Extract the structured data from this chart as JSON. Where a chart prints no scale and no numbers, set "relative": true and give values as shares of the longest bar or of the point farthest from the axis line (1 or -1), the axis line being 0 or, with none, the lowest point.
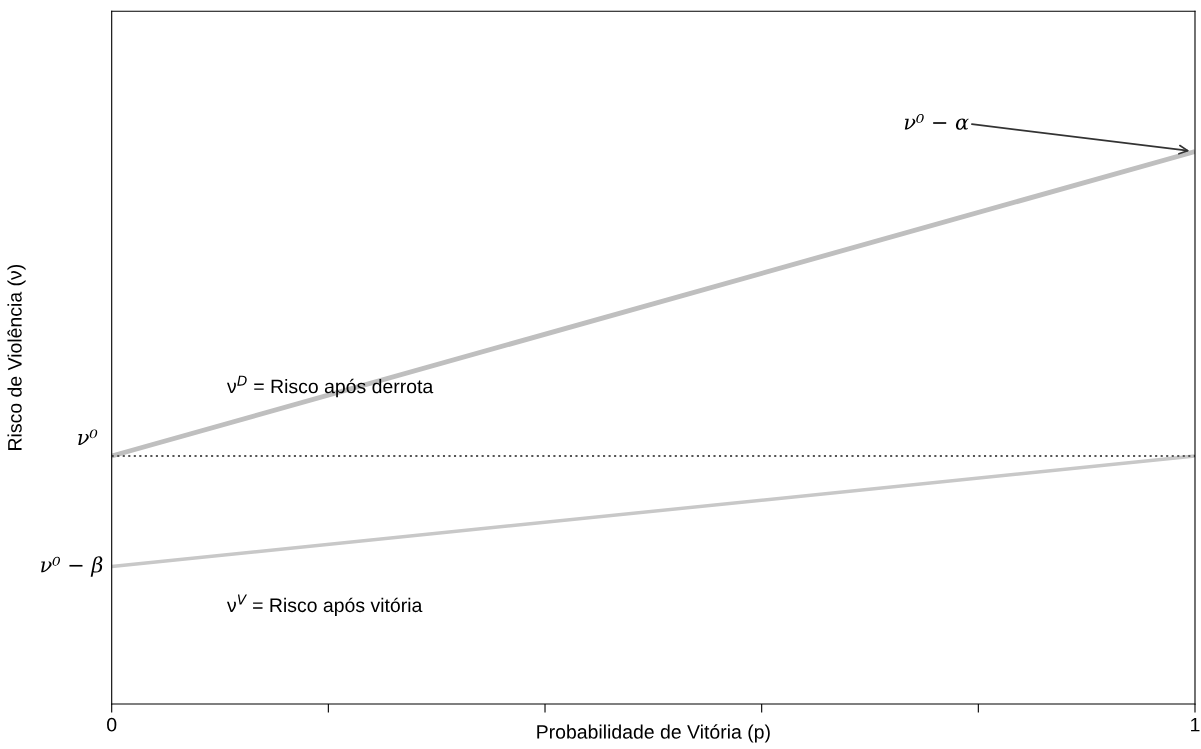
{
  "chart_data": {
    "type": "line",
    "relative": true,
    "xlabel": "Probabilidade de Vitória (p)",
    "ylabel": "Risco de Violência (ν)",
    "x": [
      0,
      1
    ],
    "xlim": [
      0,
      1
    ],
    "xticks": [
      0,
      {
        "value": 0.2,
        "label": null
      },
      {
        "value": 0.4,
        "label": null
      },
      {
        "value": 0.6,
        "label": null
      },
      {
        "value": 0.8,
        "label": null
      },
      1
    ],
    "series": [
      {
        "name": "ν$^{D}$ = Risco após derrota",
        "color": "#bfbfbf",
        "values": [
          0.449,
          1
        ]
      },
      {
        "name": "ν$^{V}$ = Risco após vitória",
        "color": "#c8c8c8",
        "values": [
          0.249,
          0.449
        ]
      }
    ],
    "ref_lines": [
      {
        "axis": "y",
        "value": 0.449,
        "label": "ν⁰",
        "color": "#555555",
        "line_style": "dotted"
      }
    ],
    "annotations": [
      {
        "text": "ν⁰ − α",
        "x": 1,
        "y": 1
      },
      {
        "text": "ν⁰ − β",
        "x": 0,
        "y": 0.249
      }
    ],
    "legend": false,
    "grid": false,
    "marker": "none"
  }
}
